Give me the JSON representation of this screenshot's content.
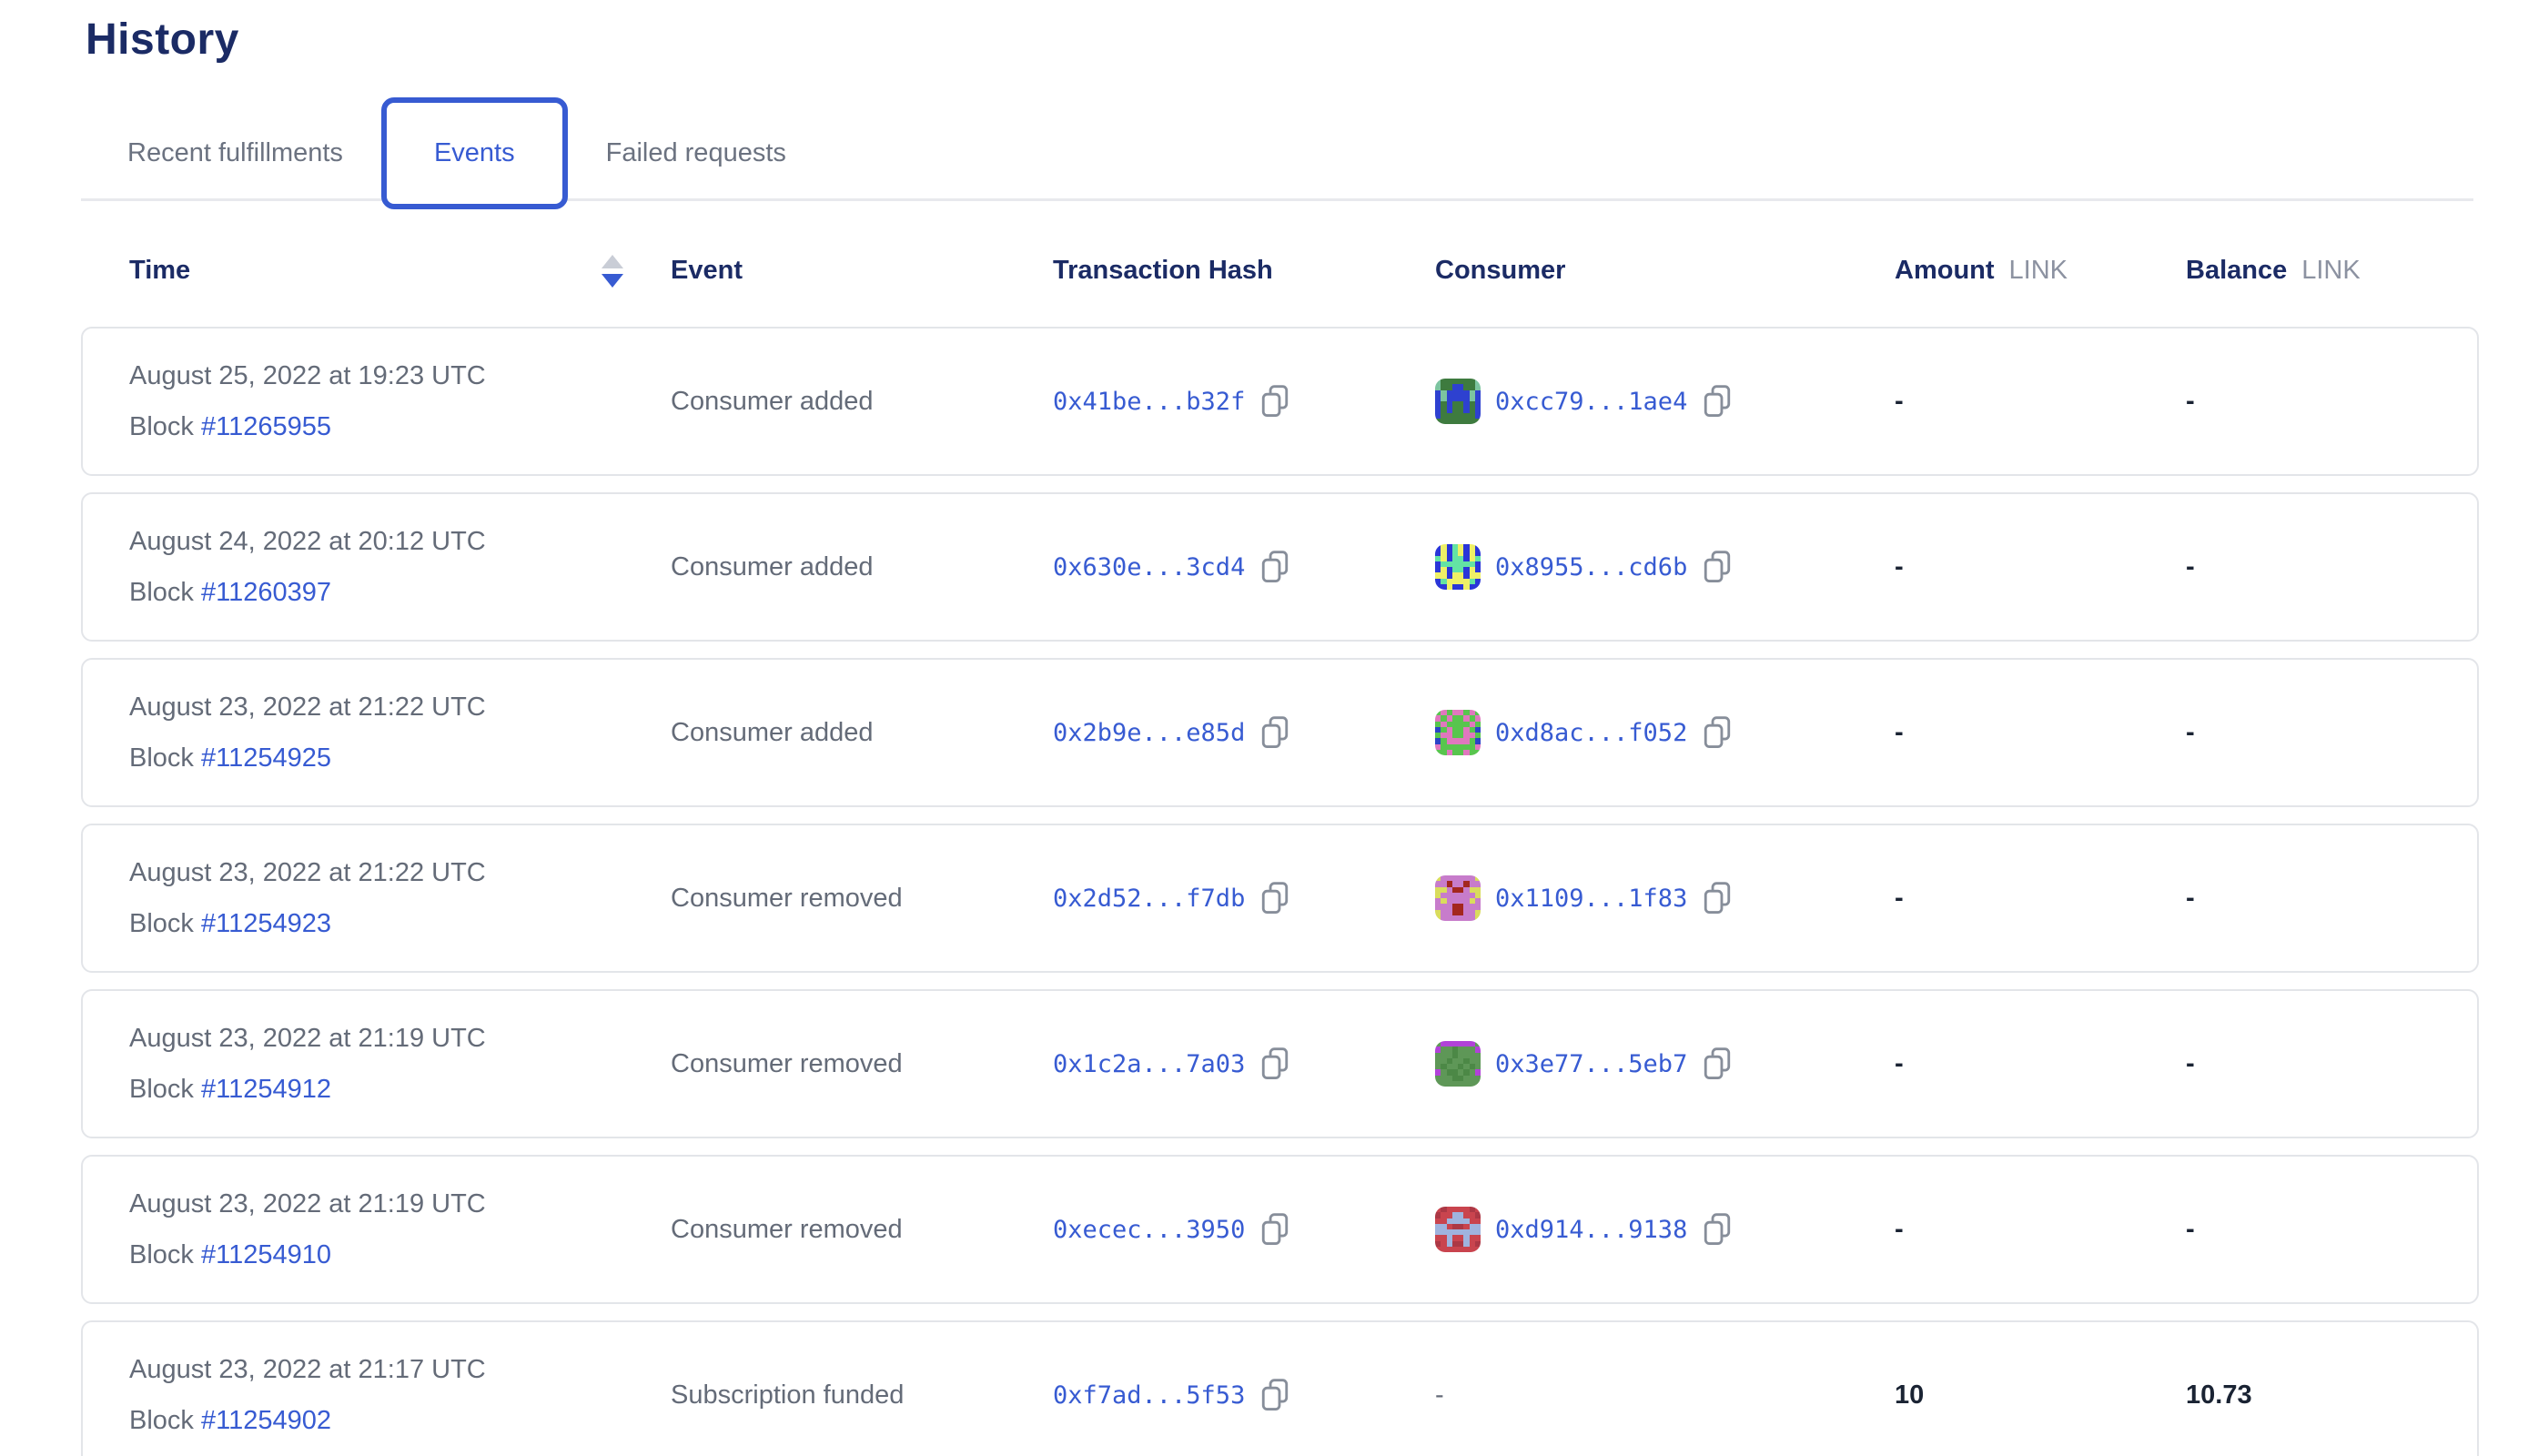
{
  "page": {
    "title": "History"
  },
  "tabs": [
    {
      "label": "Recent fulfillments",
      "active": false
    },
    {
      "label": "Events",
      "active": true
    },
    {
      "label": "Failed requests",
      "active": false
    }
  ],
  "table": {
    "headers": {
      "time": "Time",
      "event": "Event",
      "tx": "Transaction Hash",
      "consumer": "Consumer",
      "amount": "Amount",
      "balance": "Balance",
      "unit": "LINK"
    },
    "rows": [
      {
        "date": "August 25, 2022 at 19:23 UTC",
        "block_label": "Block",
        "block": "#11265955",
        "event": "Consumer added",
        "tx": "0x41be...b32f",
        "consumer": "0xcc79...1ae4",
        "amount": "-",
        "balance": "-",
        "avatar": {
          "palette": [
            "#3E7B3F",
            "#2E41D0",
            "#7CC4A0"
          ],
          "grid": [
            "20000002",
            "20011002",
            "12111121",
            "12111121",
            "10100101",
            "10100101",
            "10000001",
            "00000000"
          ]
        }
      },
      {
        "date": "August 24, 2022 at 20:12 UTC",
        "block_label": "Block",
        "block": "#11260397",
        "event": "Consumer added",
        "tx": "0x630e...3cd4",
        "consumer": "0x8955...cd6b",
        "amount": "-",
        "balance": "-",
        "avatar": {
          "palette": [
            "#2A36D8",
            "#EEF066",
            "#63E3A4"
          ],
          "grid": [
            "01021010",
            "01021010",
            "21022012",
            "02222220",
            "01022010",
            "11011011",
            "02111120",
            "00100100"
          ]
        }
      },
      {
        "date": "August 23, 2022 at 21:22 UTC",
        "block_label": "Block",
        "block": "#11254925",
        "event": "Consumer added",
        "tx": "0x2b9e...e85d",
        "consumer": "0xd8ac...f052",
        "amount": "-",
        "balance": "-",
        "avatar": {
          "palette": [
            "#58C54E",
            "#E077BE",
            "#2B43C8"
          ],
          "grid": [
            "01011010",
            "10100101",
            "01000010",
            "20100102",
            "01100110",
            "20111102",
            "10000001",
            "00100100"
          ]
        }
      },
      {
        "date": "August 23, 2022 at 21:22 UTC",
        "block_label": "Block",
        "block": "#11254923",
        "event": "Consumer removed",
        "tx": "0x2d52...f7db",
        "consumer": "0x1109...1f83",
        "amount": "-",
        "balance": "-",
        "avatar": {
          "palette": [
            "#C77CCB",
            "#D9DC5D",
            "#A3271E"
          ],
          "grid": [
            "10000001",
            "00200200",
            "11022011",
            "10000001",
            "01000010",
            "00022000",
            "10022001",
            "10000001"
          ]
        }
      },
      {
        "date": "August 23, 2022 at 21:19 UTC",
        "block_label": "Block",
        "block": "#11254912",
        "event": "Consumer removed",
        "tx": "0x1c2a...7a03",
        "consumer": "0x3e77...5eb7",
        "amount": "-",
        "balance": "-",
        "avatar": {
          "palette": [
            "#5E9757",
            "#B142D8",
            "#4C8846"
          ],
          "grid": [
            "01111110",
            "10020001",
            "00020000",
            "00200200",
            "02002020",
            "10220201",
            "00022000",
            "00000000"
          ]
        }
      },
      {
        "date": "August 23, 2022 at 21:19 UTC",
        "block_label": "Block",
        "block": "#11254910",
        "event": "Consumer removed",
        "tx": "0xecec...3950",
        "consumer": "0xd914...9138",
        "amount": "-",
        "balance": "-",
        "avatar": {
          "palette": [
            "#C9444E",
            "#9FB3DE",
            "#AC3845"
          ],
          "grid": [
            "02000020",
            "20011002",
            "00111100",
            "11022011",
            "11111111",
            "00100100",
            "20122102",
            "00000000"
          ]
        }
      },
      {
        "date": "August 23, 2022 at 21:17 UTC",
        "block_label": "Block",
        "block": "#11254902",
        "event": "Subscription funded",
        "tx": "0xf7ad...5f53",
        "consumer": "-",
        "amount": "10",
        "balance": "10.73",
        "avatar": null
      }
    ]
  },
  "colors": {
    "accent": "#375BD2",
    "heading": "#1B2B65",
    "muted_text": "#646B78",
    "value_text": "#1A2333",
    "card_border": "#E3E5E9",
    "divider": "#E8E9ED",
    "copy_icon": "#878E9A",
    "sort_inactive": "#C9CDD6"
  }
}
